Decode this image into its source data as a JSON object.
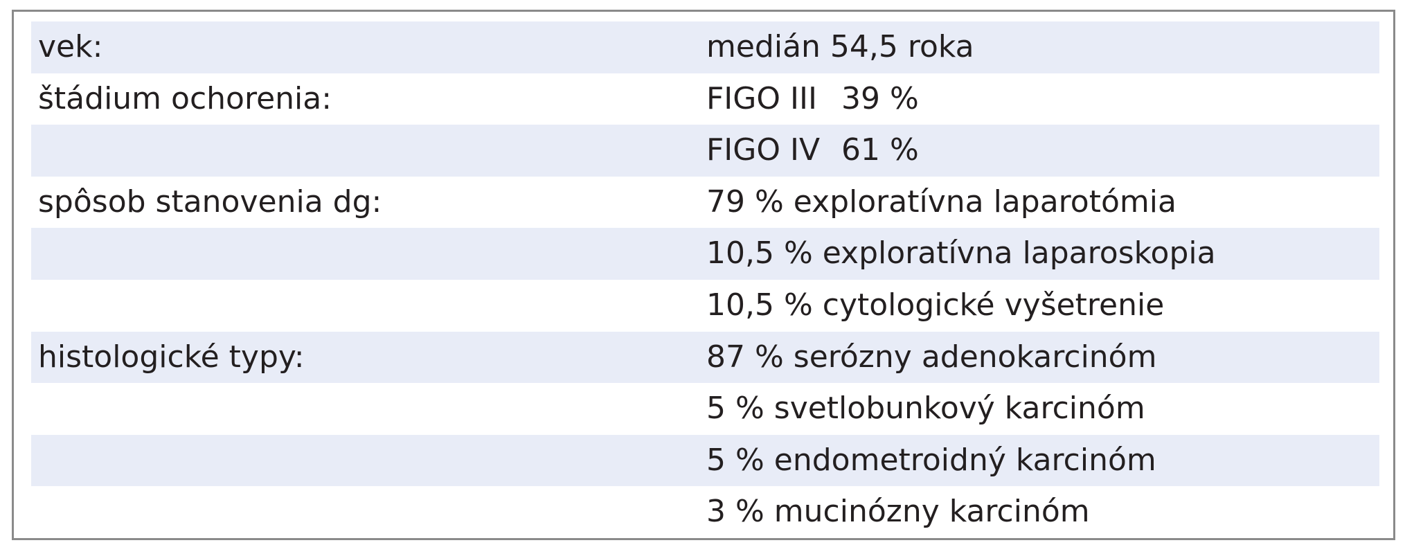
{
  "table": {
    "rows": [
      {
        "label": "vek:",
        "value": "medián 54,5 roka"
      },
      {
        "label": "štádium ochorenia:",
        "stage": "FIGO III",
        "percent": "39 %"
      },
      {
        "label": "",
        "stage": "FIGO IV",
        "percent": "61 %"
      },
      {
        "label": "spôsob stanovenia dg:",
        "value": "79 % exploratívna laparotómia"
      },
      {
        "label": "",
        "value": "10,5 % exploratívna laparoskopia"
      },
      {
        "label": "",
        "value": "10,5 % cytologické vyšetrenie"
      },
      {
        "label": "histologické typy:",
        "value": "87 % serózny adenokarcinóm"
      },
      {
        "label": "",
        "value": "5 % svetlobunkový karcinóm"
      },
      {
        "label": "",
        "value": "5 % endometroidný karcinóm"
      },
      {
        "label": "",
        "value": "3 % mucinózny karcinóm"
      }
    ],
    "shading_color": "#e8ecf7",
    "border_color": "#8a8a8a"
  }
}
